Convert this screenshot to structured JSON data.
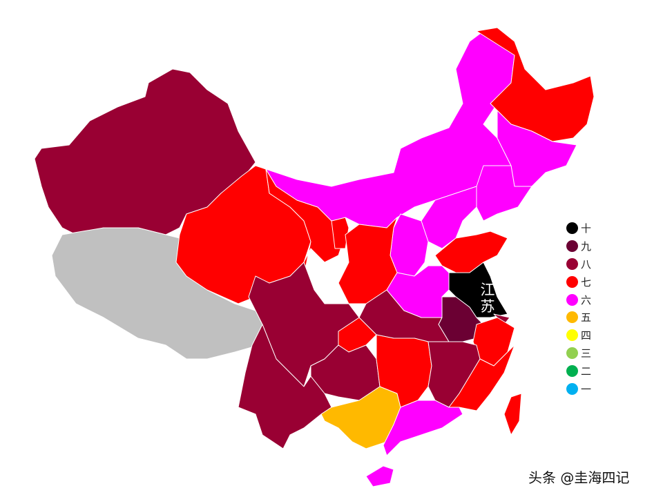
{
  "legend": [
    {
      "label": "十",
      "color": "#000000"
    },
    {
      "label": "九",
      "color": "#6B0033"
    },
    {
      "label": "八",
      "color": "#990033"
    },
    {
      "label": "七",
      "color": "#FF0000"
    },
    {
      "label": "六",
      "color": "#FF00FF"
    },
    {
      "label": "五",
      "color": "#FFB900"
    },
    {
      "label": "四",
      "color": "#FFFF00"
    },
    {
      "label": "三",
      "color": "#92D050"
    },
    {
      "label": "二",
      "color": "#00B050"
    },
    {
      "label": "一",
      "color": "#00B0F0"
    }
  ],
  "no_data_color": "#C0C0C0",
  "regions": [
    {
      "id": "xinjiang",
      "level": "八"
    },
    {
      "id": "tibet",
      "level": null
    },
    {
      "id": "qinghai",
      "level": "七"
    },
    {
      "id": "gansu",
      "level": "七"
    },
    {
      "id": "ningxia",
      "level": "七"
    },
    {
      "id": "inner-mongolia",
      "level": "六"
    },
    {
      "id": "heilongjiang",
      "level": "七"
    },
    {
      "id": "jilin",
      "level": "六"
    },
    {
      "id": "liaoning",
      "level": "六"
    },
    {
      "id": "hebei",
      "level": "六"
    },
    {
      "id": "shanxi",
      "level": "六"
    },
    {
      "id": "shaanxi",
      "level": "七"
    },
    {
      "id": "shandong",
      "level": "七"
    },
    {
      "id": "henan",
      "level": "六"
    },
    {
      "id": "jiangsu",
      "level": "十"
    },
    {
      "id": "anhui",
      "level": "九"
    },
    {
      "id": "shanghai",
      "level": "八"
    },
    {
      "id": "zhejiang",
      "level": "七"
    },
    {
      "id": "hubei",
      "level": "八"
    },
    {
      "id": "chongqing",
      "level": "七"
    },
    {
      "id": "sichuan",
      "level": "八"
    },
    {
      "id": "yunnan",
      "level": "八"
    },
    {
      "id": "guizhou",
      "level": "八"
    },
    {
      "id": "guangxi",
      "level": "五"
    },
    {
      "id": "hunan",
      "level": "七"
    },
    {
      "id": "jiangxi",
      "level": "八"
    },
    {
      "id": "fujian",
      "level": "七"
    },
    {
      "id": "guangdong",
      "level": "六"
    },
    {
      "id": "hainan",
      "level": "六"
    },
    {
      "id": "taiwan",
      "level": "七"
    }
  ],
  "highlight_label": {
    "line1": "江",
    "line2": "苏"
  },
  "watermark": "头条 @圭海四记"
}
